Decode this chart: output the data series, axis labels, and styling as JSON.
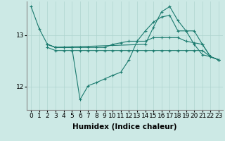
{
  "background_color": "#cce9e5",
  "line_color": "#1a7a6e",
  "grid_color": "#aed4cf",
  "xlabel": "Humidex (Indice chaleur)",
  "xlabel_fontsize": 7.5,
  "tick_fontsize": 6.5,
  "yticks": [
    12,
    13
  ],
  "xlim": [
    -0.5,
    23.5
  ],
  "ylim": [
    11.55,
    13.65
  ],
  "series": {
    "line1": {
      "x": [
        0,
        1,
        2,
        3,
        4,
        5,
        6,
        7,
        8,
        9,
        10,
        11,
        12,
        13,
        14,
        15,
        16,
        17,
        18,
        19,
        20,
        21,
        22,
        23
      ],
      "y": [
        13.55,
        13.12,
        12.82,
        12.76,
        12.76,
        12.76,
        11.75,
        12.02,
        12.08,
        12.15,
        12.22,
        12.28,
        12.52,
        12.88,
        13.08,
        13.25,
        13.35,
        13.38,
        13.08,
        13.08,
        13.08,
        12.82,
        12.58,
        12.52
      ]
    },
    "line2": {
      "x": [
        2,
        3,
        4,
        5,
        6,
        7,
        8,
        9,
        10,
        11,
        12,
        13,
        14,
        15,
        16,
        17,
        18,
        19,
        20,
        21,
        22,
        23
      ],
      "y": [
        12.82,
        12.76,
        12.76,
        12.76,
        12.76,
        12.76,
        12.76,
        12.76,
        12.82,
        12.85,
        12.88,
        12.88,
        12.88,
        12.95,
        12.95,
        12.95,
        12.95,
        12.88,
        12.85,
        12.82,
        12.58,
        12.52
      ]
    },
    "line3": {
      "x": [
        2,
        3,
        4,
        5,
        6,
        7,
        8,
        9,
        10,
        11,
        12,
        13,
        14,
        15,
        16,
        17,
        18,
        19,
        20,
        21,
        22,
        23
      ],
      "y": [
        12.76,
        12.7,
        12.7,
        12.7,
        12.7,
        12.7,
        12.7,
        12.7,
        12.7,
        12.7,
        12.7,
        12.7,
        12.7,
        12.7,
        12.7,
        12.7,
        12.7,
        12.7,
        12.7,
        12.7,
        12.58,
        12.52
      ]
    },
    "line4": {
      "x": [
        2,
        3,
        14,
        15,
        16,
        17,
        18,
        19,
        20,
        21,
        22,
        23
      ],
      "y": [
        12.82,
        12.76,
        12.82,
        13.15,
        13.45,
        13.55,
        13.28,
        13.08,
        12.82,
        12.62,
        12.58,
        12.52
      ]
    }
  }
}
